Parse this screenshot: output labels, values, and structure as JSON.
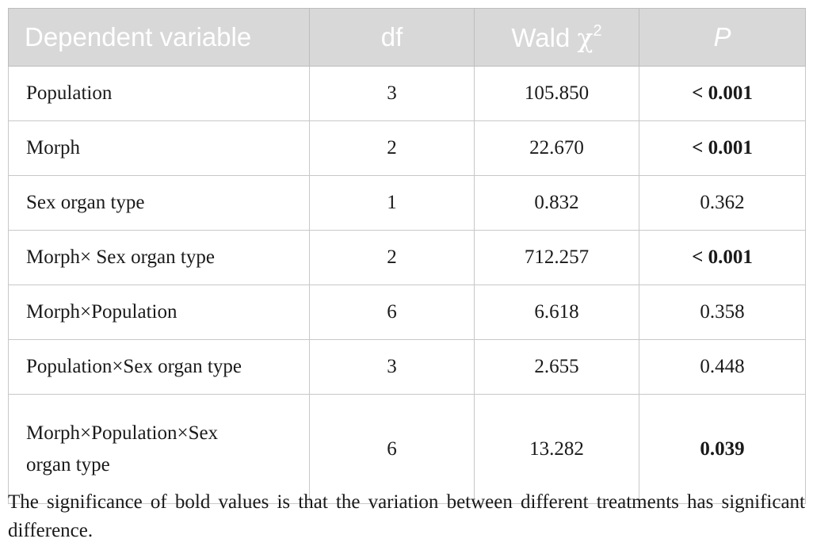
{
  "table": {
    "headers": {
      "dependent_variable": "Dependent variable",
      "df": "df",
      "wald_prefix": "Wald ",
      "wald_chi": "χ",
      "wald_sup": "2",
      "p": "P"
    },
    "rows": [
      {
        "variable": "Population",
        "df": "3",
        "wald": "105.850",
        "p_prefix": "< ",
        "p_value": "0.001",
        "p_bold": true
      },
      {
        "variable": "Morph",
        "df": "2",
        "wald": "22.670",
        "p_prefix": "< ",
        "p_value": "0.001",
        "p_bold": true
      },
      {
        "variable": "Sex organ type",
        "df": "1",
        "wald": "0.832",
        "p_prefix": "",
        "p_value": "0.362",
        "p_bold": false
      },
      {
        "variable": "Morph× Sex organ type",
        "df": "2",
        "wald": "712.257",
        "p_prefix": "< ",
        "p_value": "0.001",
        "p_bold": true
      },
      {
        "variable": "Morph×Population",
        "df": "6",
        "wald": "6.618",
        "p_prefix": "",
        "p_value": "0.358",
        "p_bold": false
      },
      {
        "variable": "Population×Sex organ type",
        "df": "3",
        "wald": "2.655",
        "p_prefix": "",
        "p_value": "0.448",
        "p_bold": false
      },
      {
        "variable_line1": "Morph×Population×Sex",
        "variable_line2": "organ type",
        "df": "6",
        "wald": "13.282",
        "p_prefix": "",
        "p_value": "0.039",
        "p_bold": true
      }
    ]
  },
  "footnote": "The significance of bold values is that the variation between different treatments has significant difference."
}
